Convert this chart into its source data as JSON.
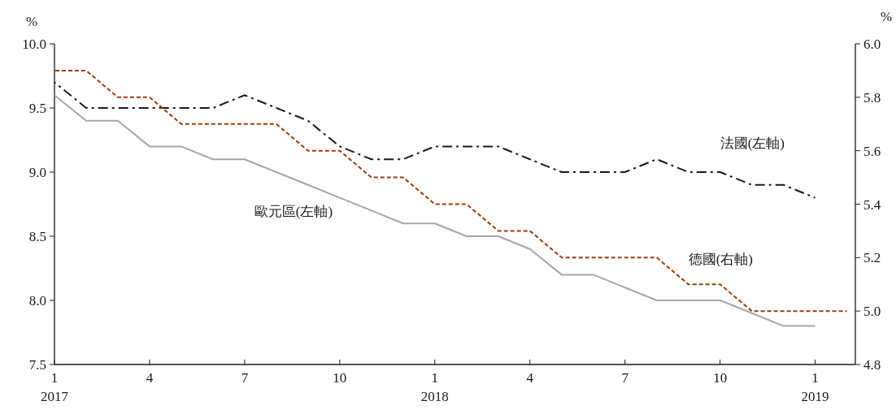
{
  "chart_data": {
    "type": "line",
    "ylabel": "%",
    "y2label": "%",
    "x": [
      "2017-01",
      "2017-02",
      "2017-03",
      "2017-04",
      "2017-05",
      "2017-06",
      "2017-07",
      "2017-08",
      "2017-09",
      "2017-10",
      "2017-11",
      "2017-12",
      "2018-01",
      "2018-02",
      "2018-03",
      "2018-04",
      "2018-05",
      "2018-06",
      "2018-07",
      "2018-08",
      "2018-09",
      "2018-10",
      "2018-11",
      "2018-12",
      "2019-01",
      "2019-02"
    ],
    "series": [
      {
        "name": "歐元區(左軸)",
        "color": "#a6a6a6",
        "line_style": "solid",
        "values": [
          9.6,
          9.4,
          9.4,
          9.2,
          9.2,
          9.1,
          9.1,
          9.0,
          8.9,
          8.8,
          8.7,
          8.6,
          8.6,
          8.5,
          8.5,
          8.4,
          8.2,
          8.2,
          8.1,
          8.0,
          8.0,
          8.0,
          7.9,
          7.8,
          7.8,
          null
        ]
      },
      {
        "name": "法國(左軸)",
        "color": "#1a1a1a",
        "line_style": "dashdot",
        "values": [
          9.7,
          9.5,
          9.5,
          9.5,
          9.5,
          9.5,
          9.6,
          9.5,
          9.4,
          9.2,
          9.1,
          9.1,
          9.2,
          9.2,
          9.2,
          9.1,
          9.0,
          9.0,
          9.0,
          9.1,
          9.0,
          9.0,
          8.9,
          8.9,
          8.8,
          null
        ]
      },
      {
        "name": "德國(右軸)",
        "color": "#9c3d0a",
        "line_style": "dashed",
        "axis": "y2",
        "values": [
          5.9,
          5.9,
          5.8,
          5.8,
          5.7,
          5.7,
          5.7,
          5.7,
          5.6,
          5.6,
          5.5,
          5.5,
          5.4,
          5.4,
          5.3,
          5.3,
          5.2,
          5.2,
          5.2,
          5.2,
          5.1,
          5.1,
          5.0,
          5.0,
          5.0,
          5.0
        ]
      }
    ],
    "xlim": [
      "2017-01",
      "2019-02-09"
    ],
    "xticks": [
      {
        "value": "2017-01",
        "label": "1\n2017"
      },
      {
        "value": "2017-04",
        "label": "4"
      },
      {
        "value": "2017-07",
        "label": "7"
      },
      {
        "value": "2017-10",
        "label": "10"
      },
      {
        "value": "2018-01",
        "label": "1\n2018"
      },
      {
        "value": "2018-04",
        "label": "4"
      },
      {
        "value": "2018-07",
        "label": "7"
      },
      {
        "value": "2018-10",
        "label": "10"
      },
      {
        "value": "2019-01",
        "label": "1\n2019"
      }
    ],
    "ylim": [
      7.5,
      10.0
    ],
    "yticks": [
      {
        "value": 7.5,
        "label": "7.5"
      },
      {
        "value": 8.0,
        "label": "8.0"
      },
      {
        "value": 8.5,
        "label": "8.5"
      },
      {
        "value": 9.0,
        "label": "9.0"
      },
      {
        "value": 9.5,
        "label": "9.5"
      },
      {
        "value": 10.0,
        "label": "10.0"
      }
    ],
    "y2lim": [
      4.8,
      6.0
    ],
    "y2ticks": [
      {
        "value": 4.8,
        "label": "4.8"
      },
      {
        "value": 5.0,
        "label": "5.0"
      },
      {
        "value": 5.2,
        "label": "5.2"
      },
      {
        "value": 5.4,
        "label": "5.4"
      },
      {
        "value": 5.6,
        "label": "5.6"
      },
      {
        "value": 5.8,
        "label": "5.8"
      },
      {
        "value": 6.0,
        "label": "6.0"
      }
    ],
    "grid": false
  }
}
